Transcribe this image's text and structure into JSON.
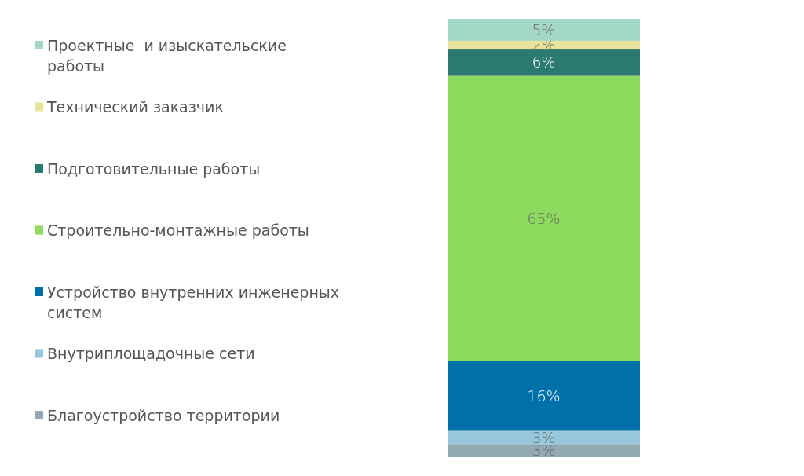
{
  "chart_data": {
    "type": "bar",
    "stacked": true,
    "categories": [
      null
    ],
    "legend": "left",
    "series": [
      {
        "name": "Благоустройство территории",
        "color": "#93a9b3",
        "values": [
          3
        ],
        "value_labels": [
          "3%"
        ]
      },
      {
        "name": "Внутриплощадочные сети",
        "color": "#98c8de",
        "values": [
          3
        ],
        "value_labels": [
          "3%"
        ]
      },
      {
        "name": "Устройство внутренних инженерных систем",
        "color": "#0070a8",
        "values": [
          16
        ],
        "value_labels": [
          "16%"
        ]
      },
      {
        "name": "Строительно-монтажные работы",
        "color": "#8cdb5e",
        "values": [
          65
        ],
        "value_labels": [
          "65%"
        ]
      },
      {
        "name": "Подготовительные работы",
        "color": "#2a7a70",
        "values": [
          6
        ],
        "value_labels": [
          "6%"
        ]
      },
      {
        "name": "Технический заказчик",
        "color": "#e8e39a",
        "values": [
          2
        ],
        "value_labels": [
          "2%"
        ]
      },
      {
        "name": "Проектные  и изыскательские работы",
        "color": "#a3d9c4",
        "values": [
          5
        ],
        "value_labels": [
          "5%"
        ]
      }
    ]
  }
}
